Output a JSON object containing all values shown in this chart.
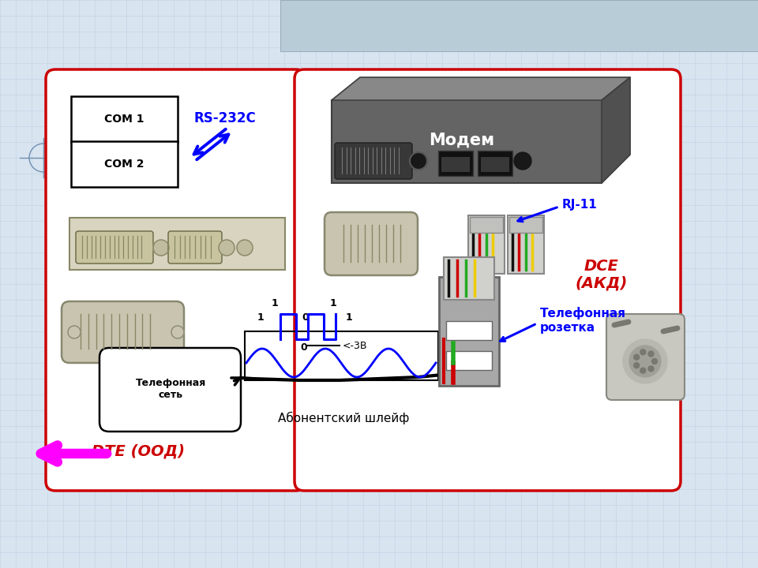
{
  "bg_color": "#d8e4f0",
  "grid_color": "#b8cce0",
  "diagram_bg": "#eaf0f8",
  "header_color": "#b8ccd8",
  "dte_label": "DTE (ООД)",
  "dce_label": "DCE\n(АКД)",
  "rs232_label": "RS-232C",
  "modem_label": "Модем",
  "rj11_label": "RJ-11",
  "com1_label": "COM 1",
  "com2_label": "COM 2",
  "phone_net_label": "Телефонная\nсеть",
  "abonent_label": "Абонентский шлейф",
  "phone_socket_label": "Телефонная\nрозетка",
  "signal_label": "<-3В",
  "box_red": "#cc0000",
  "cable_gray": "#c0c0c0",
  "connector_color": "#c8c4b0",
  "panel_color": "#d8d4c0"
}
